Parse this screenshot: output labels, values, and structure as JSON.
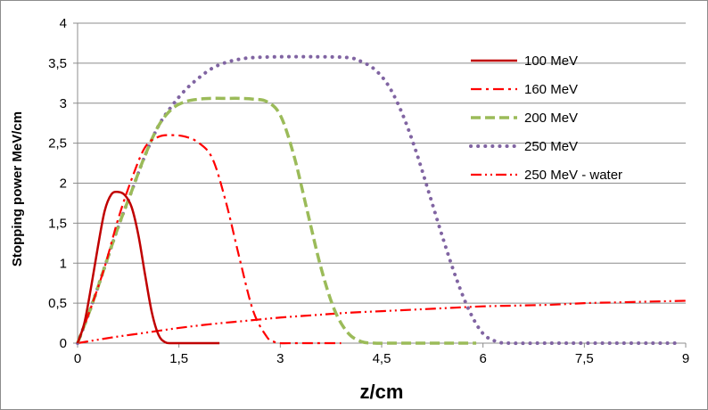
{
  "chart_data": {
    "type": "line",
    "xlabel": "z/cm",
    "ylabel": "Stopping power MeV/cm",
    "xlim": [
      0,
      9
    ],
    "ylim": [
      0,
      4
    ],
    "xticks": [
      0,
      1.5,
      3,
      4.5,
      6,
      7.5,
      9
    ],
    "yticks": [
      0,
      0.5,
      1,
      1.5,
      2,
      2.5,
      3,
      3.5,
      4
    ],
    "xtick_labels": [
      "0",
      "1,5",
      "3",
      "4,5",
      "6",
      "7,5",
      "9"
    ],
    "ytick_labels": [
      "0",
      "0,5",
      "1",
      "1,5",
      "2",
      "2,5",
      "3",
      "3,5",
      "4"
    ],
    "grid": "horizontal",
    "legend": "right",
    "series": [
      {
        "name": "100 MeV",
        "color": "#c00000",
        "style": "solid",
        "x": [
          0,
          0.1,
          0.2,
          0.3,
          0.4,
          0.5,
          0.6,
          0.7,
          0.8,
          0.9,
          1.0,
          1.1,
          1.2,
          1.3,
          1.4,
          1.5,
          1.7,
          1.9,
          2.1
        ],
        "y": [
          0,
          0.25,
          0.7,
          1.2,
          1.65,
          1.86,
          1.89,
          1.85,
          1.7,
          1.35,
          0.85,
          0.38,
          0.1,
          0.01,
          0,
          0,
          0,
          0,
          0
        ]
      },
      {
        "name": "160 MeV",
        "color": "#ff0000",
        "style": "dashdot",
        "x": [
          0,
          0.2,
          0.4,
          0.6,
          0.8,
          1.0,
          1.2,
          1.4,
          1.6,
          1.8,
          2.0,
          2.2,
          2.4,
          2.6,
          2.8,
          2.9,
          3.0,
          3.2,
          3.5,
          3.9
        ],
        "y": [
          0,
          0.45,
          0.95,
          1.55,
          2.05,
          2.45,
          2.58,
          2.6,
          2.58,
          2.5,
          2.3,
          1.75,
          1.05,
          0.4,
          0.08,
          0.02,
          0,
          0,
          0,
          0
        ]
      },
      {
        "name": "200 MeV",
        "color": "#9bbb59",
        "style": "dashed",
        "x": [
          0,
          0.2,
          0.4,
          0.6,
          0.8,
          1.0,
          1.2,
          1.4,
          1.6,
          1.8,
          2.0,
          2.2,
          2.4,
          2.6,
          2.8,
          3.0,
          3.2,
          3.4,
          3.6,
          3.8,
          4.0,
          4.2,
          4.4,
          4.6,
          5.0,
          5.5,
          5.9
        ],
        "y": [
          0,
          0.45,
          0.95,
          1.45,
          1.9,
          2.35,
          2.72,
          2.93,
          3.02,
          3.05,
          3.06,
          3.06,
          3.06,
          3.05,
          3.02,
          2.85,
          2.35,
          1.65,
          0.95,
          0.42,
          0.13,
          0.02,
          0,
          0,
          0,
          0,
          0
        ]
      },
      {
        "name": "250 MeV",
        "color": "#8064a2",
        "style": "dotted",
        "x": [
          0,
          0.2,
          0.4,
          0.6,
          0.8,
          1.0,
          1.2,
          1.4,
          1.6,
          1.8,
          2.0,
          2.2,
          2.4,
          2.6,
          3.0,
          3.5,
          4.0,
          4.2,
          4.4,
          4.6,
          4.8,
          5.0,
          5.2,
          5.4,
          5.6,
          5.8,
          6.0,
          6.2,
          6.4,
          7.0,
          8.0,
          8.9
        ],
        "y": [
          0,
          0.45,
          0.95,
          1.45,
          1.9,
          2.35,
          2.72,
          2.97,
          3.17,
          3.32,
          3.44,
          3.51,
          3.55,
          3.57,
          3.58,
          3.58,
          3.57,
          3.52,
          3.42,
          3.22,
          2.88,
          2.42,
          1.88,
          1.33,
          0.82,
          0.4,
          0.12,
          0.02,
          0,
          0,
          0,
          0
        ]
      },
      {
        "name": "250 MeV - water",
        "color": "#ff0000",
        "style": "dashdotdot",
        "x": [
          0,
          0.5,
          1,
          1.5,
          2,
          2.5,
          3,
          3.5,
          4,
          4.5,
          5,
          5.5,
          6,
          6.5,
          7,
          7.5,
          8,
          8.5,
          9
        ],
        "y": [
          0,
          0.07,
          0.13,
          0.19,
          0.24,
          0.28,
          0.32,
          0.35,
          0.38,
          0.4,
          0.42,
          0.44,
          0.46,
          0.47,
          0.48,
          0.5,
          0.51,
          0.52,
          0.53
        ]
      }
    ]
  }
}
